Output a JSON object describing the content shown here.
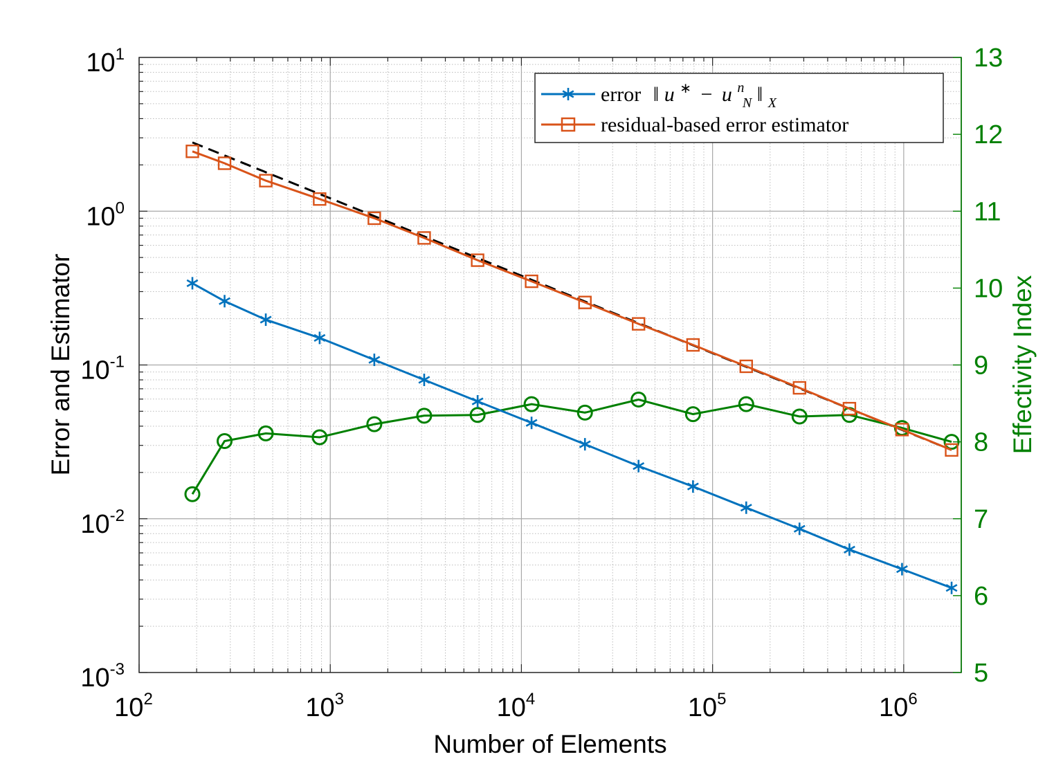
{
  "chart_data": {
    "type": "line",
    "xlabel": "Number of Elements",
    "ylabel": "Error and Estimator",
    "ylabel_right": "Effectivity Index",
    "xscale": "log",
    "yscale": "log",
    "xlim": [
      100,
      2000000
    ],
    "ylim": [
      0.001,
      10
    ],
    "ylim_right": [
      5,
      13
    ],
    "grid": "major and minor",
    "legend_position": "top-right",
    "x_tick_labels": [
      {
        "value": 100,
        "base": "10",
        "exp": "2"
      },
      {
        "value": 1000,
        "base": "10",
        "exp": "3"
      },
      {
        "value": 10000,
        "base": "10",
        "exp": "4"
      },
      {
        "value": 100000,
        "base": "10",
        "exp": "5"
      },
      {
        "value": 1000000,
        "base": "10",
        "exp": "6"
      }
    ],
    "y_tick_labels": [
      {
        "value": 0.001,
        "base": "10",
        "exp": "-3"
      },
      {
        "value": 0.01,
        "base": "10",
        "exp": "-2"
      },
      {
        "value": 0.1,
        "base": "10",
        "exp": "-1"
      },
      {
        "value": 1,
        "base": "10",
        "exp": "0"
      },
      {
        "value": 10,
        "base": "10",
        "exp": "1"
      }
    ],
    "y_right_tick_labels": [
      "5",
      "6",
      "7",
      "8",
      "9",
      "10",
      "11",
      "12",
      "13"
    ],
    "x": [
      190,
      280,
      460,
      880,
      1700,
      3100,
      5900,
      11300,
      21500,
      41000,
      79000,
      150000,
      285000,
      520000,
      980000,
      1780000
    ],
    "series": [
      {
        "name": "error",
        "legend_text": "error",
        "legend_math": "‖u* − uₙᴺ‖ₓ",
        "legend_math_parts": {
          "norm_open": "‖",
          "u": "u",
          "star": "∗",
          "minus": "−",
          "u2": "u",
          "sup": "n",
          "sub": "N",
          "norm_close": "‖",
          "sub_x": "X"
        },
        "axis": "left",
        "color": "#0072BD",
        "marker": "asterisk",
        "values": [
          0.34,
          0.26,
          0.197,
          0.15,
          0.108,
          0.08,
          0.058,
          0.042,
          0.0305,
          0.022,
          0.0162,
          0.0118,
          0.0086,
          0.0063,
          0.0047,
          0.00355
        ]
      },
      {
        "name": "residual-based error estimator",
        "legend_text": "residual-based error estimator",
        "axis": "left",
        "color": "#D95319",
        "marker": "square",
        "values": [
          2.45,
          2.05,
          1.58,
          1.2,
          0.9,
          0.67,
          0.48,
          0.35,
          0.255,
          0.185,
          0.135,
          0.098,
          0.071,
          0.052,
          0.038,
          0.028
        ]
      },
      {
        "name": "effectivity index",
        "axis": "right",
        "color": "#008000",
        "marker": "circle",
        "values": [
          7.32,
          8.01,
          8.11,
          8.06,
          8.23,
          8.34,
          8.35,
          8.49,
          8.38,
          8.55,
          8.36,
          8.49,
          8.33,
          8.35,
          8.18,
          8.0
        ]
      },
      {
        "name": "reference slope",
        "axis": "left",
        "color": "#000000",
        "style": "dashed",
        "x": [
          190,
          1780000
        ],
        "values": [
          2.8,
          0.028
        ]
      }
    ]
  }
}
